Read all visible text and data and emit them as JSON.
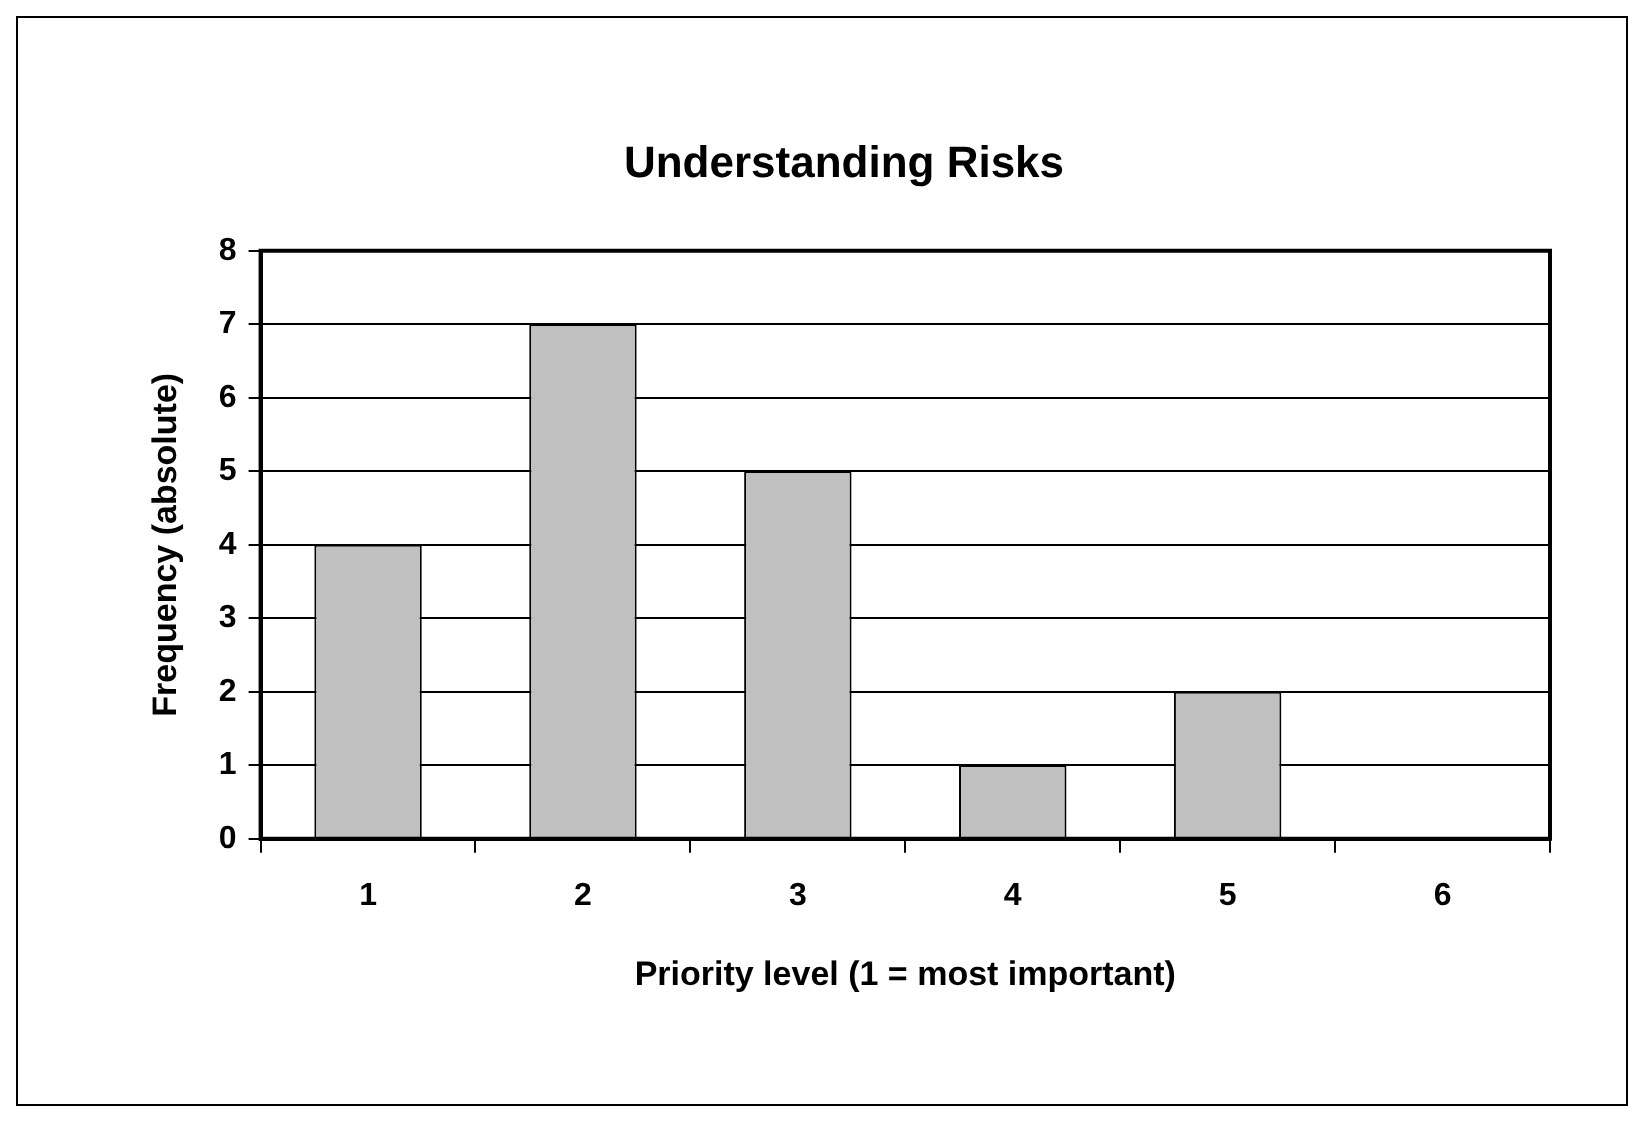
{
  "chart_data": {
    "type": "bar",
    "title": "Understanding Risks",
    "xlabel": "Priority level (1 = most important)",
    "ylabel": "Frequency (absolute)",
    "categories": [
      "1",
      "2",
      "3",
      "4",
      "5",
      "6"
    ],
    "values": [
      4,
      7,
      5,
      1,
      2,
      0
    ],
    "color": "#c0c0c0",
    "ylim": [
      0,
      8
    ],
    "yticks": [
      0,
      1,
      2,
      3,
      4,
      5,
      6,
      7,
      8
    ],
    "grid": "y",
    "legend": false
  }
}
